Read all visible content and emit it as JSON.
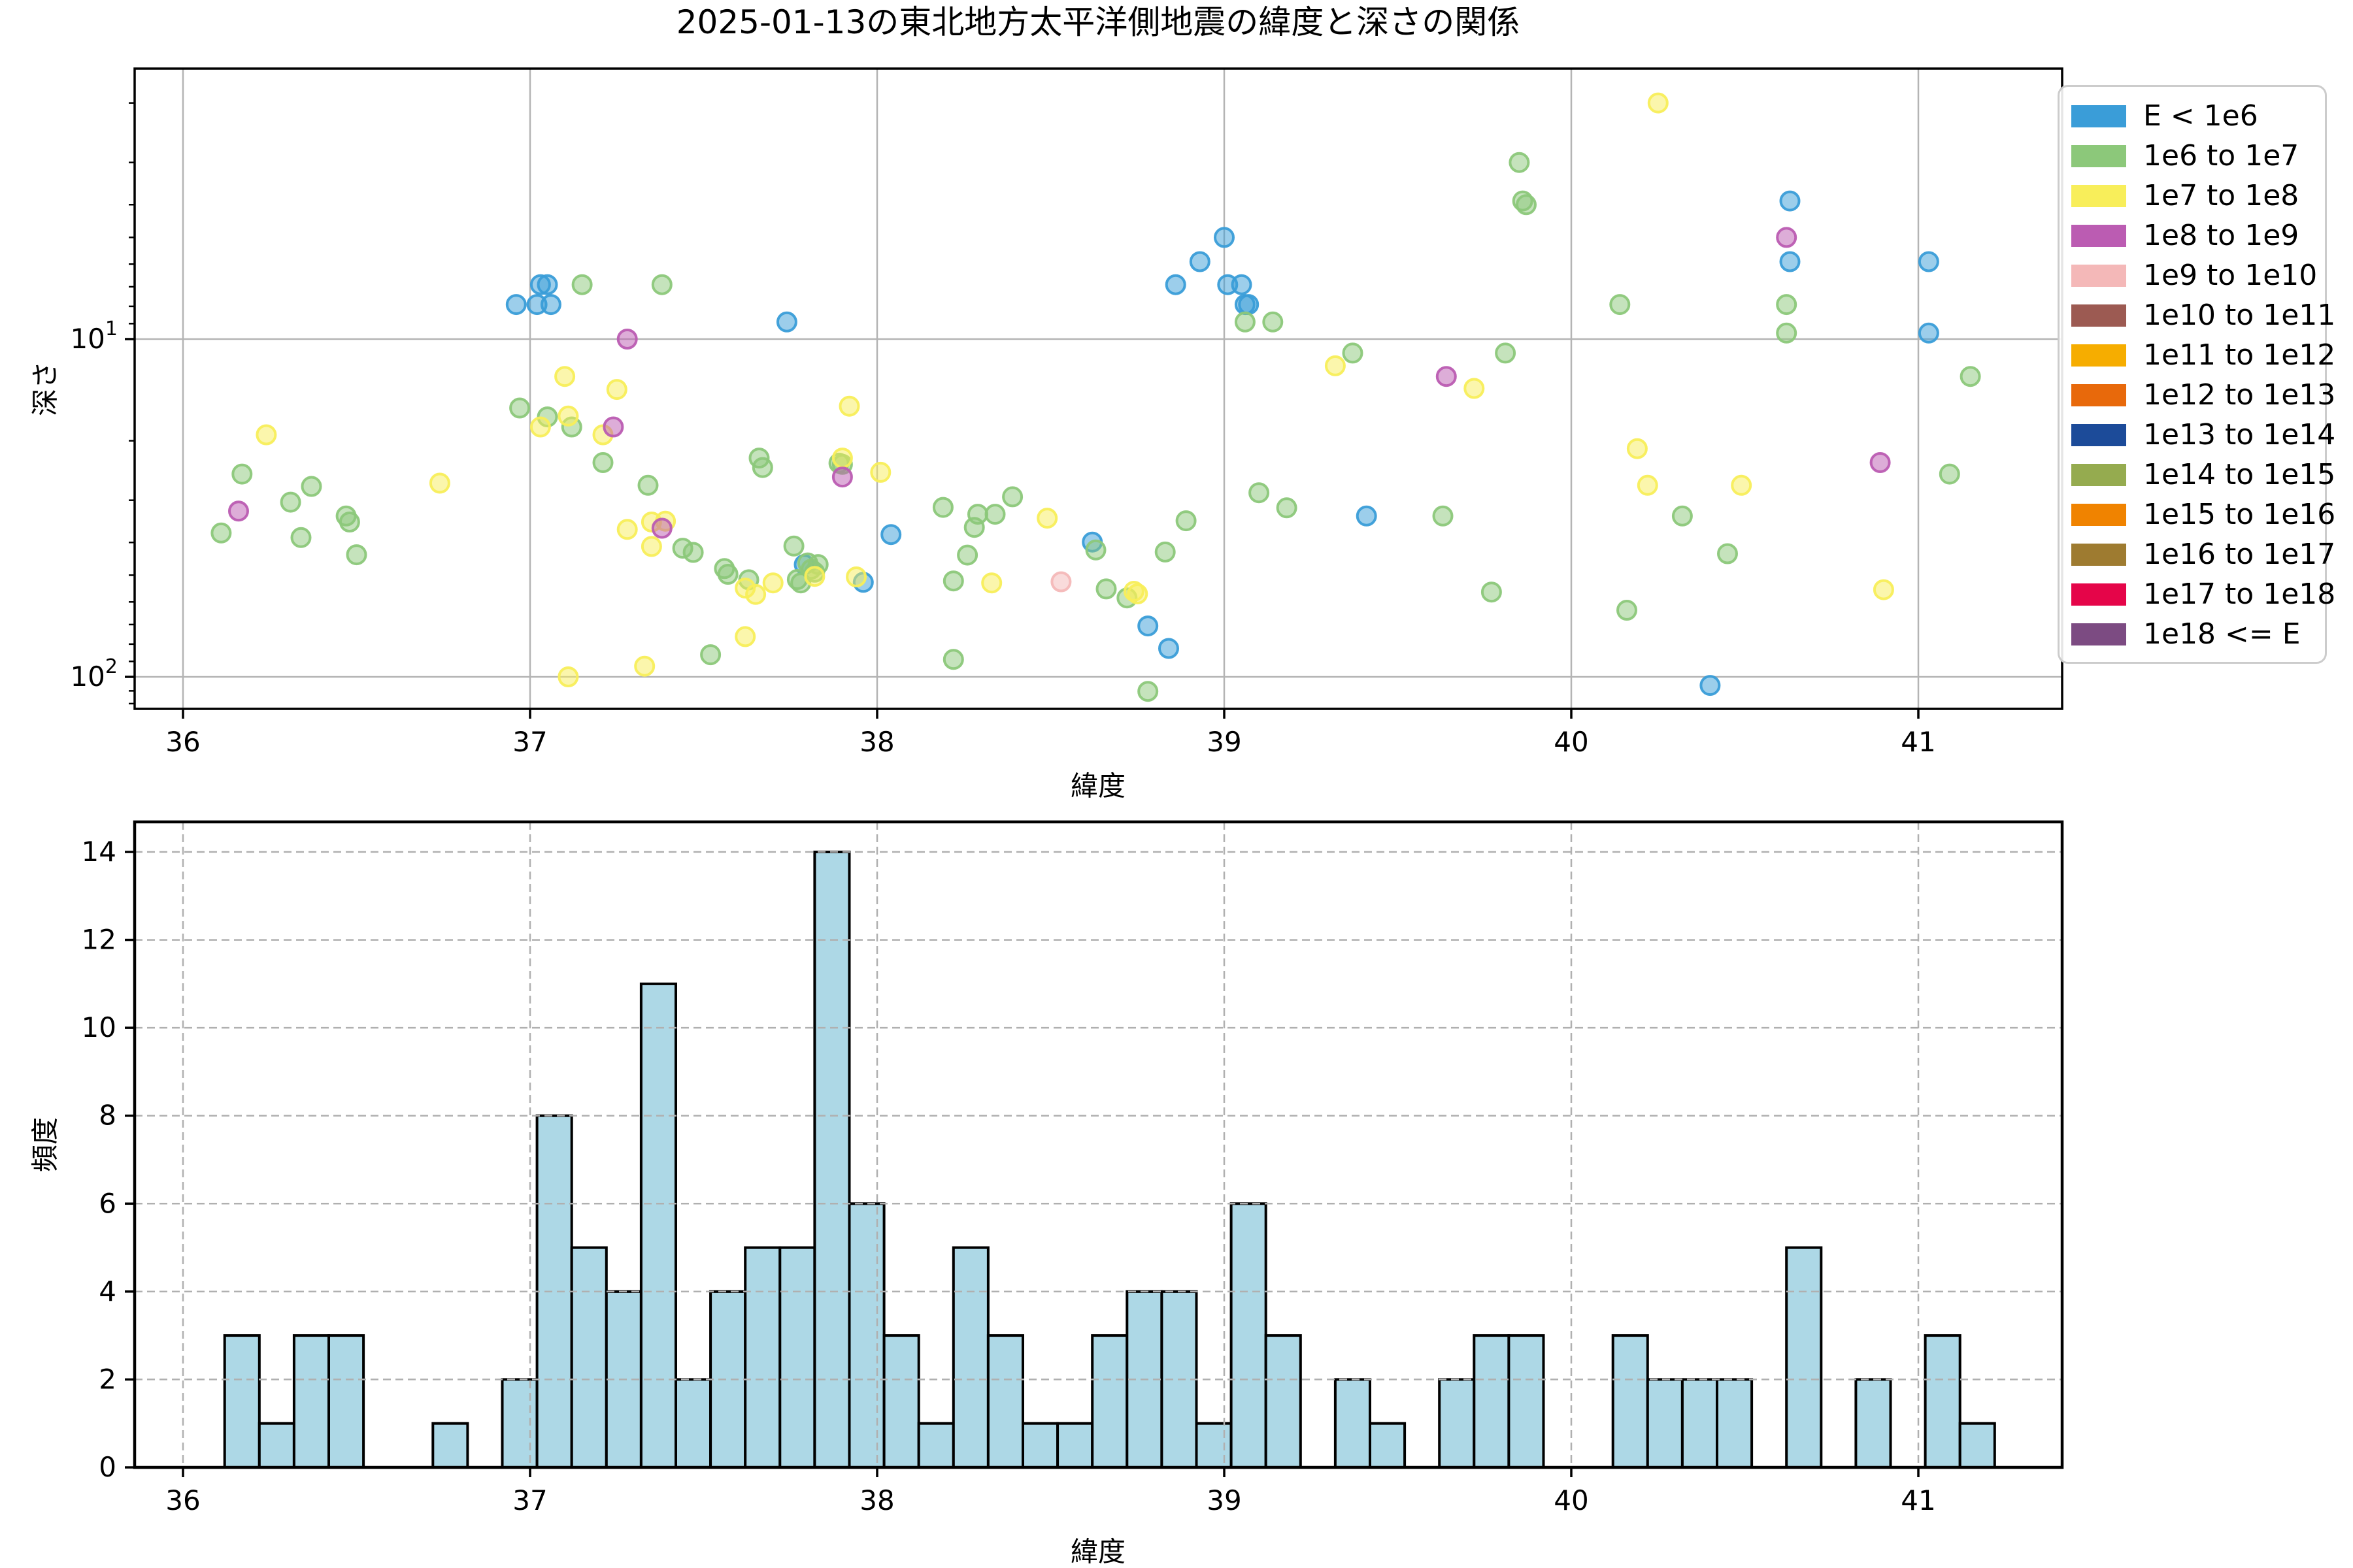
{
  "figure": {
    "title": "2025-01-13の東北地方太平洋側地震の緯度と深さの関係"
  },
  "legend": {
    "items": [
      {
        "label": "E < 1e6",
        "color": "#3a9dd8"
      },
      {
        "label": "1e6 to 1e7",
        "color": "#8cc87a"
      },
      {
        "label": "1e7 to 1e8",
        "color": "#f8ee5a"
      },
      {
        "label": "1e8 to 1e9",
        "color": "#bb5cb2"
      },
      {
        "label": "1e9 to 1e10",
        "color": "#f4b8b8"
      },
      {
        "label": "1e10 to 1e11",
        "color": "#9c5a52"
      },
      {
        "label": "1e11 to 1e12",
        "color": "#f6ad00"
      },
      {
        "label": "1e12 to 1e13",
        "color": "#e8690b"
      },
      {
        "label": "1e13 to 1e14",
        "color": "#1c4b99"
      },
      {
        "label": "1e14 to 1e15",
        "color": "#95ab4f"
      },
      {
        "label": "1e15 to 1e16",
        "color": "#f08300"
      },
      {
        "label": "1e16 to 1e17",
        "color": "#9e7b30"
      },
      {
        "label": "1e17 to 1e18",
        "color": "#e50549"
      },
      {
        "label": "1e18 <= E",
        "color": "#7c4b82"
      }
    ]
  },
  "chart_data": [
    {
      "type": "scatter",
      "title": "2025-01-13の東北地方太平洋側地震の緯度と深さの関係",
      "xlabel": "緯度",
      "ylabel": "深さ",
      "x_axis": {
        "min": 35.86,
        "max": 41.41,
        "ticks": [
          36,
          37,
          38,
          39,
          40,
          41
        ],
        "grid": "solid"
      },
      "y_axis": {
        "scale": "log",
        "inverted": true,
        "min_depth": 1.58,
        "max_depth": 124.6,
        "major_ticks": [
          10,
          100
        ],
        "major_tick_labels": [
          "10¹",
          "10²"
        ],
        "minor_ticks": [
          2,
          3,
          4,
          5,
          6,
          7,
          8,
          9,
          20,
          30,
          40,
          50,
          60,
          70,
          80,
          90,
          110,
          120
        ],
        "grid": "solid"
      },
      "legend_position": "outside-right",
      "series": [
        {
          "name": "E < 1e6",
          "color": "#3a9dd8",
          "points": [
            [
              37.03,
              6.9
            ],
            [
              37.05,
              6.9
            ],
            [
              36.96,
              7.9
            ],
            [
              37.02,
              7.9
            ],
            [
              37.06,
              7.9
            ],
            [
              37.74,
              8.9
            ],
            [
              38.93,
              5.9
            ],
            [
              39.0,
              5.0
            ],
            [
              38.86,
              6.9
            ],
            [
              39.01,
              6.9
            ],
            [
              39.05,
              6.9
            ],
            [
              39.06,
              7.9
            ],
            [
              39.07,
              7.9
            ],
            [
              38.04,
              37.9
            ],
            [
              39.41,
              33.4
            ],
            [
              38.62,
              39.9
            ],
            [
              37.79,
              46.5
            ],
            [
              37.96,
              52.5
            ],
            [
              38.78,
              70.7
            ],
            [
              38.84,
              82.4
            ],
            [
              40.63,
              3.9
            ],
            [
              40.63,
              5.9
            ],
            [
              41.03,
              5.9
            ],
            [
              41.03,
              9.6
            ],
            [
              40.4,
              106.0
            ]
          ]
        },
        {
          "name": "1e6 to 1e7",
          "color": "#8cc87a",
          "points": [
            [
              37.15,
              6.9
            ],
            [
              37.38,
              6.9
            ],
            [
              36.97,
              16.0
            ],
            [
              37.05,
              17.0
            ],
            [
              37.12,
              18.2
            ],
            [
              37.21,
              23.2
            ],
            [
              37.34,
              27.1
            ],
            [
              36.17,
              25.1
            ],
            [
              36.37,
              27.3
            ],
            [
              36.31,
              30.4
            ],
            [
              36.47,
              33.4
            ],
            [
              36.48,
              34.8
            ],
            [
              36.11,
              37.5
            ],
            [
              36.34,
              38.7
            ],
            [
              36.5,
              43.5
            ],
            [
              37.44,
              41.6
            ],
            [
              37.47,
              42.8
            ],
            [
              37.66,
              22.5
            ],
            [
              37.67,
              24.0
            ],
            [
              37.56,
              47.8
            ],
            [
              37.57,
              49.7
            ],
            [
              37.63,
              51.6
            ],
            [
              37.52,
              86.0
            ],
            [
              39.06,
              8.9
            ],
            [
              39.14,
              8.9
            ],
            [
              39.37,
              11.0
            ],
            [
              37.89,
              23.3
            ],
            [
              37.9,
              23.5
            ],
            [
              38.19,
              31.5
            ],
            [
              38.29,
              33.0
            ],
            [
              38.34,
              33.0
            ],
            [
              38.28,
              36.1
            ],
            [
              38.39,
              29.3
            ],
            [
              38.89,
              34.5
            ],
            [
              38.83,
              42.7
            ],
            [
              37.76,
              41.0
            ],
            [
              37.77,
              51.5
            ],
            [
              37.78,
              52.7
            ],
            [
              37.8,
              46.0
            ],
            [
              37.81,
              48.0
            ],
            [
              37.82,
              49.0
            ],
            [
              37.83,
              46.5
            ],
            [
              38.26,
              43.6
            ],
            [
              38.22,
              52.0
            ],
            [
              38.63,
              42.1
            ],
            [
              38.66,
              54.9
            ],
            [
              38.72,
              58.4
            ],
            [
              38.22,
              88.8
            ],
            [
              38.78,
              110.4
            ],
            [
              39.1,
              28.5
            ],
            [
              39.18,
              31.6
            ],
            [
              39.85,
              3.0
            ],
            [
              39.86,
              3.9
            ],
            [
              39.87,
              4.0
            ],
            [
              40.14,
              7.9
            ],
            [
              40.62,
              7.9
            ],
            [
              40.62,
              9.6
            ],
            [
              39.81,
              11.0
            ],
            [
              41.15,
              12.9
            ],
            [
              41.09,
              25.1
            ],
            [
              40.32,
              33.4
            ],
            [
              39.63,
              33.4
            ],
            [
              40.45,
              43.2
            ],
            [
              39.77,
              56.1
            ],
            [
              40.16,
              63.5
            ]
          ]
        },
        {
          "name": "1e7 to 1e8",
          "color": "#f8ee5a",
          "points": [
            [
              36.24,
              19.2
            ],
            [
              36.74,
              26.7
            ],
            [
              37.1,
              12.9
            ],
            [
              37.25,
              14.1
            ],
            [
              37.03,
              18.2
            ],
            [
              37.11,
              16.9
            ],
            [
              37.21,
              19.2
            ],
            [
              37.28,
              36.6
            ],
            [
              37.35,
              34.8
            ],
            [
              37.39,
              34.6
            ],
            [
              37.35,
              41.1
            ],
            [
              37.62,
              54.6
            ],
            [
              37.65,
              57.0
            ],
            [
              37.62,
              76.0
            ],
            [
              37.33,
              93.0
            ],
            [
              37.11,
              100.0
            ],
            [
              37.82,
              50.4
            ],
            [
              37.92,
              15.8
            ],
            [
              37.9,
              22.5
            ],
            [
              38.01,
              24.8
            ],
            [
              37.7,
              52.7
            ],
            [
              37.94,
              50.6
            ],
            [
              38.49,
              33.9
            ],
            [
              38.33,
              52.7
            ],
            [
              38.74,
              55.8
            ],
            [
              38.75,
              56.8
            ],
            [
              39.32,
              12.0
            ],
            [
              40.25,
              2.0
            ],
            [
              39.72,
              14.0
            ],
            [
              40.19,
              21.1
            ],
            [
              40.22,
              27.1
            ],
            [
              40.49,
              27.1
            ],
            [
              40.9,
              55.2
            ]
          ]
        },
        {
          "name": "1e8 to 1e9",
          "color": "#bb5cb2",
          "points": [
            [
              37.28,
              10.0
            ],
            [
              37.24,
              18.2
            ],
            [
              36.16,
              32.3
            ],
            [
              37.38,
              36.3
            ],
            [
              37.9,
              25.6
            ],
            [
              39.64,
              12.9
            ],
            [
              40.62,
              5.0
            ],
            [
              40.89,
              23.2
            ]
          ]
        },
        {
          "name": "1e9 to 1e10",
          "color": "#f4b8b8",
          "points": [
            [
              38.53,
              52.3
            ]
          ]
        }
      ]
    },
    {
      "type": "histogram",
      "xlabel": "緯度",
      "ylabel": "頻度",
      "bin_start": 36.12,
      "bin_width": 0.1,
      "counts": [
        3,
        1,
        3,
        3,
        0,
        0,
        1,
        0,
        2,
        8,
        5,
        4,
        11,
        2,
        4,
        5,
        5,
        14,
        6,
        3,
        1,
        5,
        3,
        1,
        1,
        3,
        4,
        4,
        1,
        6,
        3,
        0,
        2,
        1,
        0,
        2,
        3,
        3,
        0,
        0,
        3,
        2,
        2,
        2,
        0,
        5,
        0,
        2,
        0,
        3,
        1
      ],
      "total_count": 143,
      "bar_color": "#add8e6",
      "bar_edge_color": "#000000",
      "x_axis": {
        "min": 35.86,
        "max": 41.41,
        "ticks": [
          36,
          37,
          38,
          39,
          40,
          41
        ]
      },
      "y_axis": {
        "min": 0,
        "max": 14.7,
        "ticks": [
          0,
          2,
          4,
          6,
          8,
          10,
          12,
          14
        ]
      },
      "grid": "dashed"
    }
  ],
  "style": {
    "grid_color_solid": "#b4b4b4",
    "grid_color_dashed": "#b0b0b0",
    "axis_color": "#000000",
    "marker_alpha": 0.5
  }
}
